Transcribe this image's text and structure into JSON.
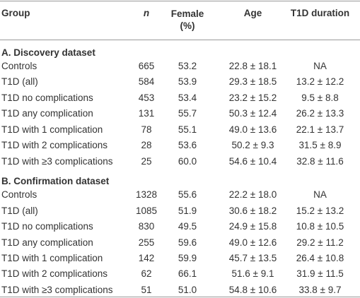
{
  "header": [
    "Group",
    "n",
    "Female (%)",
    "Age",
    "T1D duration"
  ],
  "sections": [
    {
      "title": "A. Discovery dataset",
      "rows": [
        [
          "Controls",
          "665",
          "53.2",
          "22.8 ± 18.1",
          "NA"
        ],
        [
          "T1D (all)",
          "584",
          "53.9",
          "29.3 ± 18.5",
          "13.2 ± 12.2"
        ],
        [
          "T1D no complications",
          "453",
          "53.4",
          "23.2 ± 15.2",
          "9.5 ± 8.8"
        ],
        [
          "T1D any complication",
          "131",
          "55.7",
          "50.3 ± 12.4",
          "26.2 ± 13.3"
        ],
        [
          "T1D with 1 complication",
          "78",
          "55.1",
          "49.0 ± 13.6",
          "22.1 ± 13.7"
        ],
        [
          "T1D with 2 complications",
          "28",
          "53.6",
          "50.2 ± 9.3",
          "31.5 ± 8.9"
        ],
        [
          "T1D with ≥3 complications",
          "25",
          "60.0",
          "54.6 ± 10.4",
          "32.8 ± 11.6"
        ]
      ]
    },
    {
      "title": "B. Confirmation dataset",
      "rows": [
        [
          "Controls",
          "1328",
          "55.6",
          "22.2 ± 18.0",
          "NA"
        ],
        [
          "T1D (all)",
          "1085",
          "51.9",
          "30.6 ± 18.2",
          "15.2 ± 13.2"
        ],
        [
          "T1D no complications",
          "830",
          "49.5",
          "24.9 ± 15.8",
          "10.8 ± 10.5"
        ],
        [
          "T1D any complication",
          "255",
          "59.6",
          "49.0 ± 12.6",
          "29.2 ± 11.2"
        ],
        [
          "T1D with 1 complication",
          "142",
          "59.9",
          "45.7 ± 13.5",
          "26.4 ± 10.8"
        ],
        [
          "T1D with 2 complications",
          "62",
          "66.1",
          "51.6 ± 9.1",
          "31.9 ± 11.5"
        ],
        [
          "T1D with ≥3 complications",
          "51",
          "51.0",
          "54.8 ± 10.6",
          "33.8 ± 9.7"
        ]
      ]
    }
  ]
}
